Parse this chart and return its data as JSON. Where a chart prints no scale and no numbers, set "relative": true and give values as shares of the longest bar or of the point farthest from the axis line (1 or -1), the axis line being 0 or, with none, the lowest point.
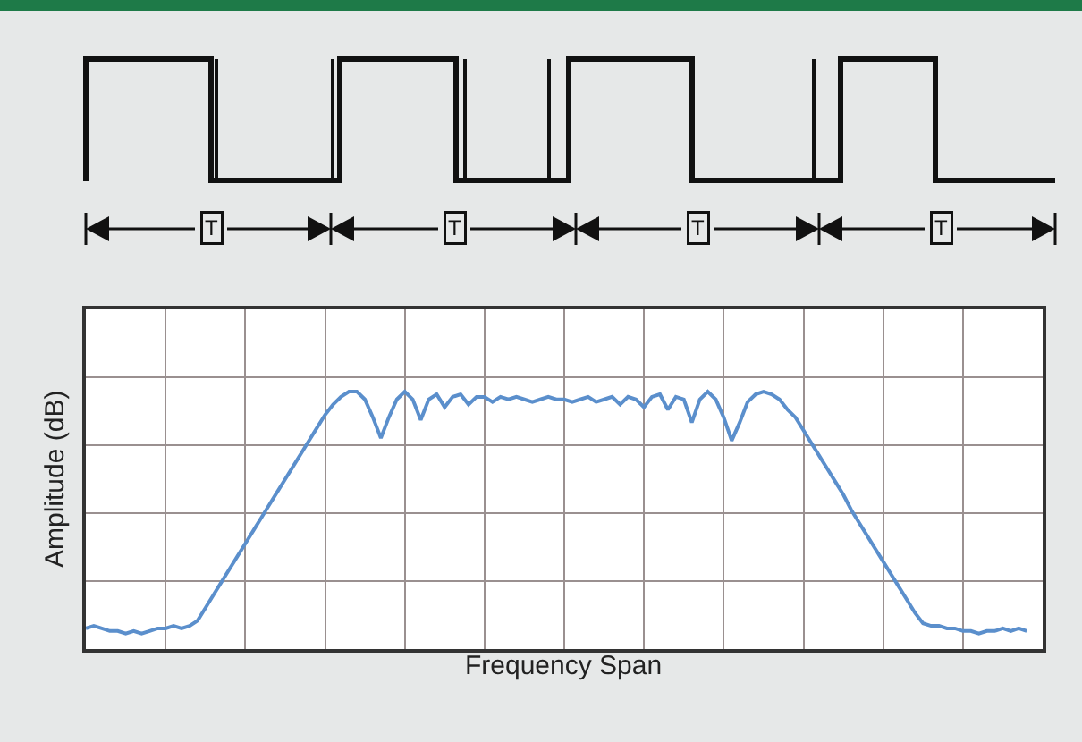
{
  "chart_data": {
    "type": "line",
    "relative": true,
    "xlabel": "Frequency Span",
    "ylabel": "Amplitude (dB)",
    "grid": true,
    "marker": "none",
    "line_style": "solid",
    "annotations": [
      "T",
      "T",
      "T",
      "T"
    ],
    "categories": [
      null,
      null,
      null,
      null,
      null,
      null,
      null,
      null,
      null,
      null,
      null,
      null,
      null,
      null,
      null,
      null,
      null,
      null,
      null,
      null,
      null,
      null,
      null,
      null,
      null,
      null,
      null,
      null,
      null,
      null,
      null,
      null,
      null,
      null,
      null,
      null,
      null,
      null,
      null,
      null,
      null,
      null,
      null,
      null,
      null,
      null,
      null,
      null,
      null,
      null,
      null,
      null,
      null,
      null,
      null,
      null,
      null,
      null,
      null,
      null,
      null,
      null,
      null,
      null,
      null,
      null,
      null,
      null,
      null,
      null,
      null,
      null,
      null,
      null,
      null,
      null,
      null,
      null,
      null,
      null,
      null,
      null,
      null,
      null,
      null,
      null,
      null,
      null,
      null,
      null,
      null,
      null,
      null,
      null,
      null,
      null,
      null,
      null,
      null,
      null,
      null,
      null,
      null,
      null,
      null,
      null,
      null,
      null,
      null,
      null,
      null,
      null,
      null,
      null,
      null,
      null,
      null,
      null,
      null,
      null,
      null
    ],
    "series": [
      {
        "color": "#5b8fcc",
        "values": [
          0.08,
          0.09,
          0.08,
          0.07,
          0.07,
          0.06,
          0.07,
          0.06,
          0.07,
          0.08,
          0.08,
          0.09,
          0.08,
          0.09,
          0.11,
          0.16,
          0.21,
          0.26,
          0.31,
          0.36,
          0.41,
          0.46,
          0.51,
          0.56,
          0.61,
          0.66,
          0.71,
          0.76,
          0.81,
          0.86,
          0.91,
          0.95,
          0.98,
          1.0,
          1.0,
          0.97,
          0.9,
          0.82,
          0.9,
          0.97,
          1.0,
          0.97,
          0.89,
          0.97,
          0.99,
          0.94,
          0.98,
          0.99,
          0.95,
          0.98,
          0.98,
          0.96,
          0.98,
          0.97,
          0.98,
          0.97,
          0.96,
          0.97,
          0.98,
          0.97,
          0.97,
          0.96,
          0.97,
          0.98,
          0.96,
          0.97,
          0.98,
          0.95,
          0.98,
          0.97,
          0.94,
          0.98,
          0.99,
          0.93,
          0.98,
          0.97,
          0.88,
          0.97,
          1.0,
          0.97,
          0.9,
          0.81,
          0.88,
          0.96,
          0.99,
          1.0,
          0.99,
          0.97,
          0.93,
          0.9,
          0.85,
          0.8,
          0.75,
          0.7,
          0.65,
          0.6,
          0.54,
          0.49,
          0.44,
          0.39,
          0.34,
          0.29,
          0.24,
          0.19,
          0.14,
          0.1,
          0.09,
          0.09,
          0.08,
          0.08,
          0.07,
          0.07,
          0.06,
          0.07,
          0.07,
          0.08,
          0.07,
          0.08,
          0.07,
          null,
          null
        ]
      }
    ]
  }
}
